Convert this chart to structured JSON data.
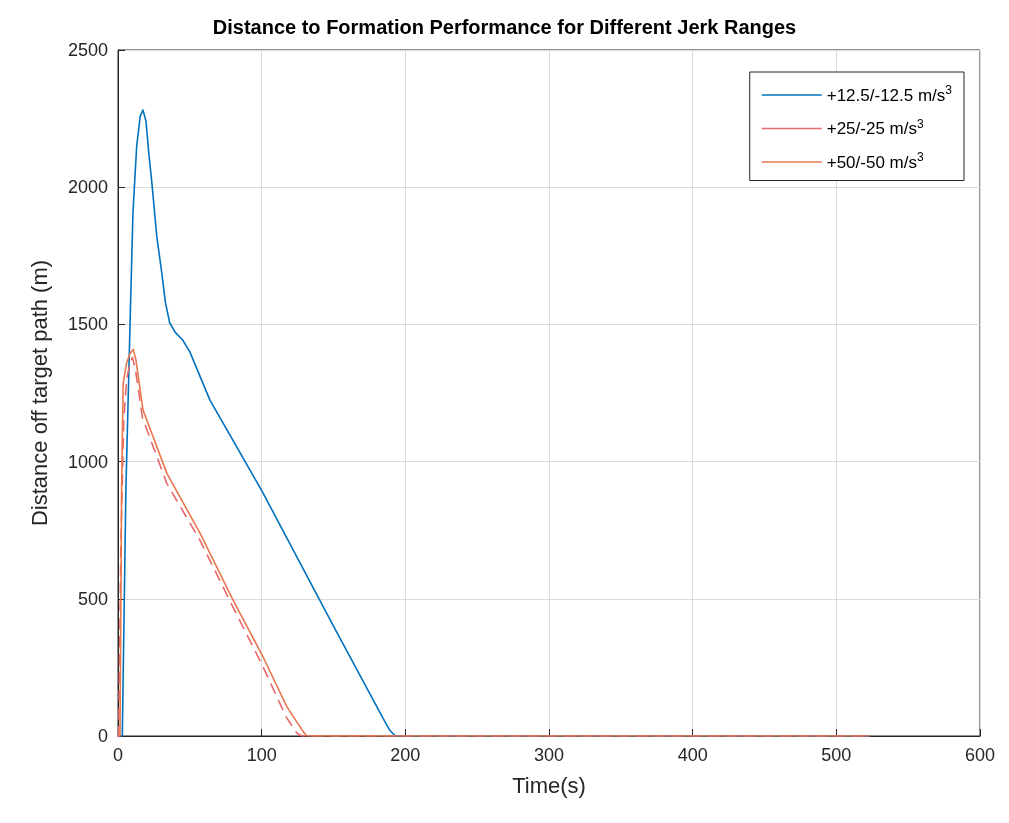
{
  "chart_data": {
    "type": "line",
    "title": "Distance to Formation Performance for Different Jerk Ranges",
    "xlabel": "Time(s)",
    "ylabel": "Distance off target path (m)",
    "xlim": [
      0,
      600
    ],
    "xticks": [
      0,
      100,
      200,
      300,
      400,
      500,
      600
    ],
    "ylim": [
      0,
      2500
    ],
    "yticks": [
      0,
      500,
      1000,
      1500,
      2000,
      2500
    ],
    "grid": true,
    "legend": "top right",
    "marker": "none",
    "series": [
      {
        "name": "+12.5/-12.5 m/s$^{3}$",
        "color": "#0072bd",
        "line_style": "solid",
        "x": [
          0,
          3,
          5.5,
          8.4,
          10.4,
          13,
          15.5,
          17.4,
          19.5,
          21.5,
          23.6,
          27,
          30.5,
          33,
          36,
          40,
          45,
          50,
          64,
          101,
          150,
          185,
          189,
          193,
          523
        ],
        "values": [
          0,
          0,
          900,
          1505,
          1906,
          2150,
          2260,
          2281,
          2240,
          2120,
          2015,
          1820,
          1687,
          1580,
          1505,
          1470,
          1443,
          1400,
          1224,
          885,
          400,
          60,
          22,
          0,
          0
        ]
      },
      {
        "name": "+25/-25 m/s$^{3}$",
        "color": "#e8676b",
        "line_style": "dashed",
        "x": [
          0,
          0.5,
          2,
          4,
          6,
          8,
          10,
          12,
          17,
          34,
          57,
          80,
          101,
          117,
          124.6,
          128,
          523
        ],
        "values": [
          0,
          0,
          700,
          1150,
          1300,
          1350,
          1380,
          1340,
          1160,
          920,
          714,
          470,
          252,
          70,
          10,
          0,
          0
        ]
      },
      {
        "name": "+50/-50 m/s$^{3}$",
        "color": "#e8764e",
        "line_style": "solid",
        "x": [
          0,
          1.4,
          2.5,
          3.6,
          6,
          8.5,
          10.6,
          12.5,
          17.4,
          34,
          57,
          80,
          101,
          117.6,
          129,
          131.5,
          523
        ],
        "values": [
          0,
          0,
          900,
          1286,
          1360,
          1395,
          1409,
          1370,
          1188,
          957,
          740,
          496,
          288,
          106,
          15,
          0,
          0
        ]
      }
    ]
  }
}
